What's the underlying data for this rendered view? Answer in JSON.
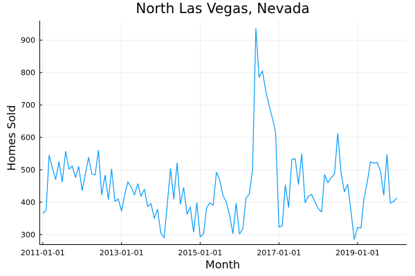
{
  "chart_data": {
    "type": "line",
    "title": "North Las Vegas, Nevada",
    "xlabel": "Month",
    "ylabel": "Homes Sold",
    "grid": true,
    "legend": "none",
    "xlim": [
      "2010-12-01",
      "2020-04-01"
    ],
    "ylim": [
      268,
      960
    ],
    "xticks": [
      "2011-01-01",
      "2013-01-01",
      "2015-01-01",
      "2017-01-01",
      "2019-01-01"
    ],
    "yticks": [
      300,
      400,
      500,
      600,
      700,
      800,
      900
    ],
    "line_color": "#009AFA",
    "series": [
      {
        "values": [
          {
            "x": "2011-01-01",
            "y": 365
          },
          {
            "x": "2011-02-01",
            "y": 375
          },
          {
            "x": "2011-03-01",
            "y": 545
          },
          {
            "x": "2011-04-01",
            "y": 505
          },
          {
            "x": "2011-05-01",
            "y": 470
          },
          {
            "x": "2011-06-01",
            "y": 525
          },
          {
            "x": "2011-07-01",
            "y": 462
          },
          {
            "x": "2011-08-01",
            "y": 557
          },
          {
            "x": "2011-09-01",
            "y": 502
          },
          {
            "x": "2011-10-01",
            "y": 512
          },
          {
            "x": "2011-11-01",
            "y": 476
          },
          {
            "x": "2011-12-01",
            "y": 510
          },
          {
            "x": "2012-01-01",
            "y": 436
          },
          {
            "x": "2012-02-01",
            "y": 488
          },
          {
            "x": "2012-03-01",
            "y": 538
          },
          {
            "x": "2012-04-01",
            "y": 487
          },
          {
            "x": "2012-05-01",
            "y": 484
          },
          {
            "x": "2012-06-01",
            "y": 560
          },
          {
            "x": "2012-07-01",
            "y": 422
          },
          {
            "x": "2012-08-01",
            "y": 483
          },
          {
            "x": "2012-09-01",
            "y": 408
          },
          {
            "x": "2012-10-01",
            "y": 502
          },
          {
            "x": "2012-11-01",
            "y": 402
          },
          {
            "x": "2012-12-01",
            "y": 410
          },
          {
            "x": "2013-01-01",
            "y": 373
          },
          {
            "x": "2013-02-01",
            "y": 425
          },
          {
            "x": "2013-03-01",
            "y": 463
          },
          {
            "x": "2013-04-01",
            "y": 447
          },
          {
            "x": "2013-05-01",
            "y": 422
          },
          {
            "x": "2013-06-01",
            "y": 457
          },
          {
            "x": "2013-07-01",
            "y": 418
          },
          {
            "x": "2013-08-01",
            "y": 440
          },
          {
            "x": "2013-09-01",
            "y": 386
          },
          {
            "x": "2013-10-01",
            "y": 396
          },
          {
            "x": "2013-11-01",
            "y": 350
          },
          {
            "x": "2013-12-01",
            "y": 378
          },
          {
            "x": "2014-01-01",
            "y": 305
          },
          {
            "x": "2014-02-01",
            "y": 290
          },
          {
            "x": "2014-03-01",
            "y": 392
          },
          {
            "x": "2014-04-01",
            "y": 503
          },
          {
            "x": "2014-05-01",
            "y": 410
          },
          {
            "x": "2014-06-01",
            "y": 521
          },
          {
            "x": "2014-07-01",
            "y": 394
          },
          {
            "x": "2014-08-01",
            "y": 445
          },
          {
            "x": "2014-09-01",
            "y": 363
          },
          {
            "x": "2014-10-01",
            "y": 385
          },
          {
            "x": "2014-11-01",
            "y": 308
          },
          {
            "x": "2014-12-01",
            "y": 398
          },
          {
            "x": "2015-01-01",
            "y": 293
          },
          {
            "x": "2015-02-01",
            "y": 302
          },
          {
            "x": "2015-03-01",
            "y": 382
          },
          {
            "x": "2015-04-01",
            "y": 398
          },
          {
            "x": "2015-05-01",
            "y": 390
          },
          {
            "x": "2015-06-01",
            "y": 492
          },
          {
            "x": "2015-07-01",
            "y": 470
          },
          {
            "x": "2015-08-01",
            "y": 420
          },
          {
            "x": "2015-09-01",
            "y": 400
          },
          {
            "x": "2015-10-01",
            "y": 360
          },
          {
            "x": "2015-11-01",
            "y": 303
          },
          {
            "x": "2015-12-01",
            "y": 396
          },
          {
            "x": "2016-01-01",
            "y": 302
          },
          {
            "x": "2016-02-01",
            "y": 318
          },
          {
            "x": "2016-03-01",
            "y": 412
          },
          {
            "x": "2016-04-01",
            "y": 425
          },
          {
            "x": "2016-05-01",
            "y": 500
          },
          {
            "x": "2016-06-01",
            "y": 936
          },
          {
            "x": "2016-07-01",
            "y": 785
          },
          {
            "x": "2016-08-01",
            "y": 805
          },
          {
            "x": "2016-09-01",
            "y": 742
          },
          {
            "x": "2016-10-01",
            "y": 700
          },
          {
            "x": "2016-11-01",
            "y": 660
          },
          {
            "x": "2016-12-01",
            "y": 617
          },
          {
            "x": "2017-01-01",
            "y": 323
          },
          {
            "x": "2017-02-01",
            "y": 327
          },
          {
            "x": "2017-03-01",
            "y": 453
          },
          {
            "x": "2017-04-01",
            "y": 384
          },
          {
            "x": "2017-05-01",
            "y": 532
          },
          {
            "x": "2017-06-01",
            "y": 534
          },
          {
            "x": "2017-07-01",
            "y": 455
          },
          {
            "x": "2017-08-01",
            "y": 549
          },
          {
            "x": "2017-09-01",
            "y": 398
          },
          {
            "x": "2017-10-01",
            "y": 418
          },
          {
            "x": "2017-11-01",
            "y": 424
          },
          {
            "x": "2017-12-01",
            "y": 400
          },
          {
            "x": "2018-01-01",
            "y": 380
          },
          {
            "x": "2018-02-01",
            "y": 370
          },
          {
            "x": "2018-03-01",
            "y": 485
          },
          {
            "x": "2018-04-01",
            "y": 460
          },
          {
            "x": "2018-05-01",
            "y": 475
          },
          {
            "x": "2018-06-01",
            "y": 488
          },
          {
            "x": "2018-07-01",
            "y": 612
          },
          {
            "x": "2018-08-01",
            "y": 490
          },
          {
            "x": "2018-09-01",
            "y": 432
          },
          {
            "x": "2018-10-01",
            "y": 455
          },
          {
            "x": "2018-11-01",
            "y": 372
          },
          {
            "x": "2018-12-01",
            "y": 285
          },
          {
            "x": "2019-01-01",
            "y": 322
          },
          {
            "x": "2019-02-01",
            "y": 320
          },
          {
            "x": "2019-03-01",
            "y": 410
          },
          {
            "x": "2019-04-01",
            "y": 462
          },
          {
            "x": "2019-05-01",
            "y": 525
          },
          {
            "x": "2019-06-01",
            "y": 520
          },
          {
            "x": "2019-07-01",
            "y": 523
          },
          {
            "x": "2019-08-01",
            "y": 497
          },
          {
            "x": "2019-09-01",
            "y": 422
          },
          {
            "x": "2019-10-01",
            "y": 547
          },
          {
            "x": "2019-11-01",
            "y": 397
          },
          {
            "x": "2019-12-01",
            "y": 402
          },
          {
            "x": "2020-01-01",
            "y": 413
          }
        ]
      }
    ]
  }
}
